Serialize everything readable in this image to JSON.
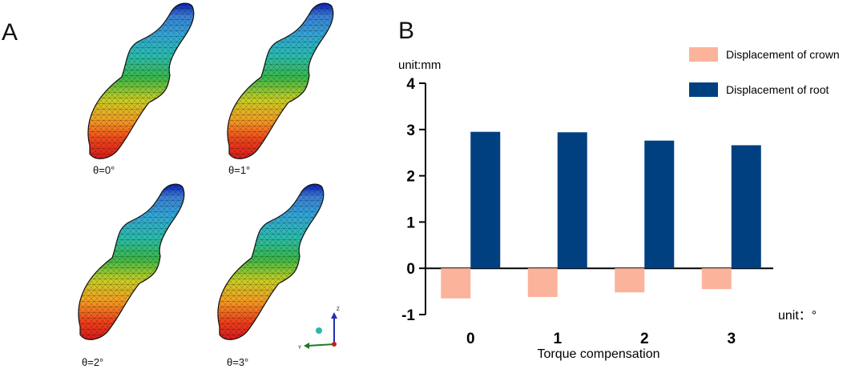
{
  "panels": {
    "a_label": "A",
    "b_label": "B"
  },
  "panel_a": {
    "captions": [
      "θ=0°",
      "θ=1°",
      "θ=2°",
      "θ=3°"
    ],
    "axis_triad": {
      "z": "Z",
      "y": "Y"
    },
    "colors": {
      "crown_end": "#d81b1b",
      "root_end": "#0b1fb4",
      "mesh": "#000000"
    }
  },
  "chart_data": {
    "type": "bar",
    "title": "",
    "categories": [
      "0",
      "1",
      "2",
      "3"
    ],
    "series": [
      {
        "name": "Displacement of crown",
        "values": [
          -0.65,
          -0.62,
          -0.52,
          -0.45
        ],
        "color": "#fbb39b"
      },
      {
        "name": "Displacement of root",
        "values": [
          2.95,
          2.94,
          2.76,
          2.66
        ],
        "color": "#004080"
      }
    ],
    "xlabel": "Torque compensation",
    "ylabel": "unit:mm",
    "x_unit_label": "unit：°",
    "ylim": [
      -1,
      4
    ],
    "yticks": [
      -1,
      0,
      1,
      2,
      3,
      4
    ],
    "legend_position": "top-right",
    "grid": false
  }
}
